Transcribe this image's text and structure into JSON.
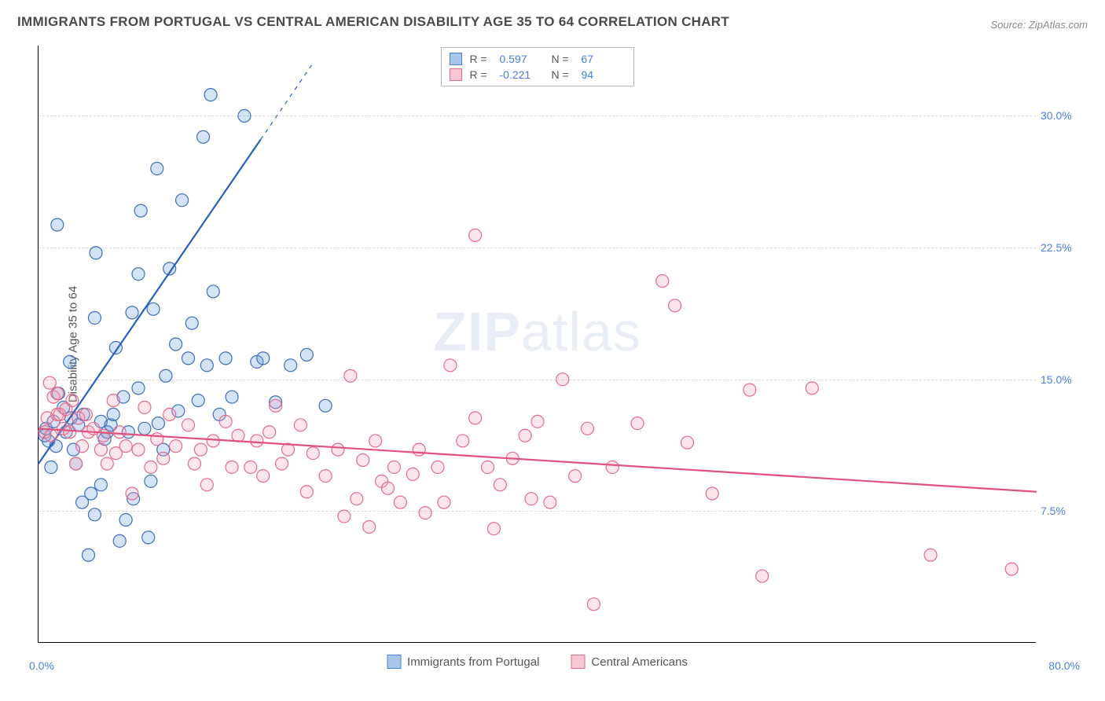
{
  "title": "IMMIGRANTS FROM PORTUGAL VS CENTRAL AMERICAN DISABILITY AGE 35 TO 64 CORRELATION CHART",
  "source": "Source: ZipAtlas.com",
  "watermark_bold": "ZIP",
  "watermark_rest": "atlas",
  "ylabel": "Disability Age 35 to 64",
  "chart": {
    "type": "scatter",
    "bg_color": "#ffffff",
    "grid_color": "#d8d8d8",
    "xlim": [
      0,
      80
    ],
    "ylim": [
      0,
      34
    ],
    "xticks": [
      {
        "v": 0,
        "label": "0.0%"
      },
      {
        "v": 80,
        "label": "80.0%"
      }
    ],
    "yticks": [
      {
        "v": 7.5,
        "label": "7.5%"
      },
      {
        "v": 15.0,
        "label": "15.0%"
      },
      {
        "v": 22.5,
        "label": "22.5%"
      },
      {
        "v": 30.0,
        "label": "30.0%"
      }
    ],
    "marker_radius": 8,
    "marker_stroke_width": 1.2,
    "marker_fill_opacity": 0.28,
    "line_width": 2.2,
    "dash_pattern": "5,6",
    "series": [
      {
        "name": "Immigrants from Portugal",
        "color": "#6699dd",
        "stroke": "#3f6fb8",
        "line_color": "#2b5fbf",
        "R": "0.597",
        "N": "67",
        "trend": {
          "x1": 0,
          "y1": 10.2,
          "x2": 22,
          "y2": 33.0,
          "dash_from_x": 17.8
        },
        "points": [
          [
            0.5,
            11.8
          ],
          [
            0.6,
            12.2
          ],
          [
            0.8,
            11.5
          ],
          [
            1.0,
            10.0
          ],
          [
            1.2,
            12.6
          ],
          [
            1.4,
            11.2
          ],
          [
            1.6,
            14.2
          ],
          [
            1.5,
            23.8
          ],
          [
            2.0,
            13.4
          ],
          [
            2.2,
            12.0
          ],
          [
            2.5,
            16.0
          ],
          [
            2.6,
            12.8
          ],
          [
            2.8,
            11.0
          ],
          [
            3.0,
            10.2
          ],
          [
            3.2,
            12.4
          ],
          [
            3.5,
            8.0
          ],
          [
            3.6,
            13.0
          ],
          [
            4.0,
            5.0
          ],
          [
            4.2,
            8.5
          ],
          [
            4.5,
            18.5
          ],
          [
            4.5,
            7.3
          ],
          [
            4.6,
            22.2
          ],
          [
            5.0,
            12.6
          ],
          [
            5.0,
            9.0
          ],
          [
            5.3,
            11.6
          ],
          [
            5.5,
            12.0
          ],
          [
            5.8,
            12.4
          ],
          [
            6.0,
            13.0
          ],
          [
            6.2,
            16.8
          ],
          [
            6.5,
            5.8
          ],
          [
            6.8,
            14.0
          ],
          [
            7.0,
            7.0
          ],
          [
            7.2,
            12.0
          ],
          [
            7.5,
            18.8
          ],
          [
            7.6,
            8.2
          ],
          [
            8.0,
            14.5
          ],
          [
            8.0,
            21.0
          ],
          [
            8.2,
            24.6
          ],
          [
            8.5,
            12.2
          ],
          [
            8.8,
            6.0
          ],
          [
            9.0,
            9.2
          ],
          [
            9.2,
            19.0
          ],
          [
            9.5,
            27.0
          ],
          [
            9.6,
            12.5
          ],
          [
            10.0,
            11.0
          ],
          [
            10.2,
            15.2
          ],
          [
            10.5,
            21.3
          ],
          [
            11.0,
            17.0
          ],
          [
            11.2,
            13.2
          ],
          [
            11.5,
            25.2
          ],
          [
            12.0,
            16.2
          ],
          [
            12.3,
            18.2
          ],
          [
            12.8,
            13.8
          ],
          [
            13.2,
            28.8
          ],
          [
            13.5,
            15.8
          ],
          [
            14.0,
            20.0
          ],
          [
            14.5,
            13.0
          ],
          [
            15.0,
            16.2
          ],
          [
            15.5,
            14.0
          ],
          [
            13.8,
            31.2
          ],
          [
            16.5,
            30.0
          ],
          [
            17.5,
            16.0
          ],
          [
            18.0,
            16.2
          ],
          [
            19.0,
            13.7
          ],
          [
            20.2,
            15.8
          ],
          [
            21.5,
            16.4
          ],
          [
            23.0,
            13.5
          ]
        ]
      },
      {
        "name": "Central Americans",
        "color": "#f4a6ba",
        "stroke": "#e46b8a",
        "line_color": "#e0517c",
        "R": "-0.221",
        "N": "94",
        "trend": {
          "x1": 0,
          "y1": 12.2,
          "x2": 80,
          "y2": 8.6,
          "dash_from_x": null
        },
        "points": [
          [
            0.5,
            12.0
          ],
          [
            0.7,
            12.8
          ],
          [
            0.9,
            14.8
          ],
          [
            1.0,
            11.8
          ],
          [
            1.2,
            14.0
          ],
          [
            1.5,
            13.0
          ],
          [
            1.5,
            14.2
          ],
          [
            1.7,
            13.0
          ],
          [
            2.0,
            12.2
          ],
          [
            2.2,
            13.3
          ],
          [
            2.5,
            12.0
          ],
          [
            2.7,
            13.8
          ],
          [
            3.0,
            10.2
          ],
          [
            3.2,
            12.8
          ],
          [
            3.5,
            11.2
          ],
          [
            3.8,
            13.0
          ],
          [
            4.0,
            12.0
          ],
          [
            4.4,
            12.2
          ],
          [
            5.0,
            11.0
          ],
          [
            5.2,
            11.8
          ],
          [
            5.5,
            10.2
          ],
          [
            6.0,
            13.8
          ],
          [
            6.2,
            10.8
          ],
          [
            6.5,
            12.0
          ],
          [
            7.0,
            11.2
          ],
          [
            7.5,
            8.5
          ],
          [
            8.0,
            11.0
          ],
          [
            8.5,
            13.4
          ],
          [
            9.0,
            10.0
          ],
          [
            9.5,
            11.6
          ],
          [
            10.0,
            10.5
          ],
          [
            10.5,
            13.0
          ],
          [
            11.0,
            11.2
          ],
          [
            12.0,
            12.4
          ],
          [
            12.5,
            10.2
          ],
          [
            13.0,
            11.0
          ],
          [
            13.5,
            9.0
          ],
          [
            14.0,
            11.5
          ],
          [
            15.0,
            12.6
          ],
          [
            15.5,
            10.0
          ],
          [
            16.0,
            11.8
          ],
          [
            17.0,
            10.0
          ],
          [
            17.5,
            11.5
          ],
          [
            18.0,
            9.5
          ],
          [
            18.5,
            12.0
          ],
          [
            19.0,
            13.5
          ],
          [
            19.5,
            10.2
          ],
          [
            20.0,
            11.0
          ],
          [
            21.0,
            12.4
          ],
          [
            21.5,
            8.6
          ],
          [
            22.0,
            10.8
          ],
          [
            23.0,
            9.5
          ],
          [
            24.0,
            11.0
          ],
          [
            24.5,
            7.2
          ],
          [
            25.0,
            15.2
          ],
          [
            25.5,
            8.2
          ],
          [
            26.0,
            10.4
          ],
          [
            26.5,
            6.6
          ],
          [
            27.0,
            11.5
          ],
          [
            27.5,
            9.2
          ],
          [
            28.0,
            8.8
          ],
          [
            28.5,
            10.0
          ],
          [
            29.0,
            8.0
          ],
          [
            30.0,
            9.6
          ],
          [
            30.5,
            11.0
          ],
          [
            31.0,
            7.4
          ],
          [
            32.0,
            10.0
          ],
          [
            32.5,
            8.0
          ],
          [
            33.0,
            15.8
          ],
          [
            34.0,
            11.5
          ],
          [
            35.0,
            12.8
          ],
          [
            35.0,
            23.2
          ],
          [
            36.0,
            10.0
          ],
          [
            36.5,
            6.5
          ],
          [
            37.0,
            9.0
          ],
          [
            38.0,
            10.5
          ],
          [
            39.0,
            11.8
          ],
          [
            39.5,
            8.2
          ],
          [
            40.0,
            12.6
          ],
          [
            41.0,
            8.0
          ],
          [
            42.0,
            15.0
          ],
          [
            43.0,
            9.5
          ],
          [
            44.0,
            12.2
          ],
          [
            44.5,
            2.2
          ],
          [
            46.0,
            10.0
          ],
          [
            48.0,
            12.5
          ],
          [
            50.0,
            20.6
          ],
          [
            51.0,
            19.2
          ],
          [
            52.0,
            11.4
          ],
          [
            54.0,
            8.5
          ],
          [
            57.0,
            14.4
          ],
          [
            58.0,
            3.8
          ],
          [
            62.0,
            14.5
          ],
          [
            71.5,
            5.0
          ],
          [
            78.0,
            4.2
          ]
        ]
      }
    ]
  },
  "legend_bottom": [
    {
      "label": "Immigrants from Portugal",
      "fill": "#a8c5ea",
      "border": "#4b80d8"
    },
    {
      "label": "Central Americans",
      "fill": "#f7c8d4",
      "border": "#e46b8a"
    }
  ],
  "stats_labels": {
    "r": "R  =",
    "n": "N  ="
  }
}
